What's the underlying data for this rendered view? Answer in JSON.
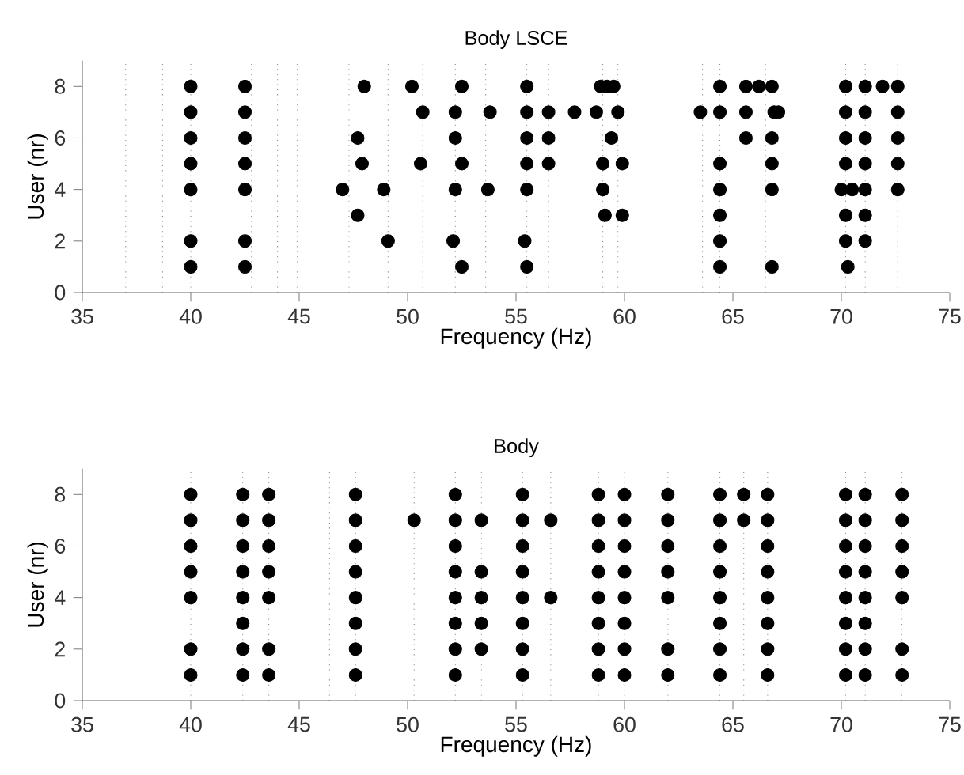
{
  "chart_data": [
    {
      "type": "scatter",
      "title": "Body LSCE",
      "xlabel": "Frequency (Hz)",
      "ylabel": "User (nr)",
      "xlim": [
        35,
        75
      ],
      "ylim": [
        0,
        9
      ],
      "xticks": [
        35,
        40,
        45,
        50,
        55,
        60,
        65,
        70,
        75
      ],
      "yticks": [
        0,
        2,
        4,
        6,
        8
      ],
      "marker": "circle",
      "grid": false,
      "legend": false,
      "series": [
        {
          "color": "#000000",
          "x": [
            40,
            40,
            40,
            40,
            40,
            40,
            40,
            42.5,
            42.5,
            42.5,
            42.5,
            42.5,
            42.5,
            42.5,
            48.0,
            50.2,
            52.5,
            55.5,
            58.9,
            59.2,
            59.5,
            64.4,
            65.6,
            66.2,
            66.8,
            70.2,
            71.1,
            71.9,
            72.6,
            50.7,
            52.2,
            53.8,
            55.5,
            56.5,
            57.7,
            58.7,
            59.7,
            63.5,
            64.4,
            65.6,
            66.9,
            67.1,
            70.2,
            71.1,
            72.6,
            47.7,
            52.2,
            55.5,
            56.5,
            59.4,
            65.6,
            66.8,
            70.2,
            71.1,
            72.6,
            47.9,
            50.6,
            52.5,
            55.5,
            56.5,
            59.0,
            59.9,
            64.4,
            66.8,
            70.2,
            71.1,
            72.6,
            47.0,
            48.9,
            52.2,
            53.7,
            55.5,
            59.0,
            64.4,
            66.8,
            70.0,
            70.5,
            71.1,
            72.6,
            47.7,
            59.1,
            59.9,
            64.4,
            70.2,
            71.1,
            49.1,
            52.1,
            55.4,
            64.4,
            70.2,
            71.1,
            52.5,
            55.5,
            64.4,
            66.8,
            70.3
          ],
          "values": [
            8,
            7,
            6,
            5,
            4,
            2,
            1,
            8,
            7,
            6,
            5,
            4,
            2,
            1,
            8,
            8,
            8,
            8,
            8,
            8,
            8,
            8,
            8,
            8,
            8,
            8,
            8,
            8,
            8,
            7,
            7,
            7,
            7,
            7,
            7,
            7,
            7,
            7,
            7,
            7,
            7,
            7,
            7,
            7,
            7,
            6,
            6,
            6,
            6,
            6,
            6,
            6,
            6,
            6,
            6,
            5,
            5,
            5,
            5,
            5,
            5,
            5,
            5,
            5,
            5,
            5,
            5,
            4,
            4,
            4,
            4,
            4,
            4,
            4,
            4,
            4,
            4,
            4,
            4,
            3,
            3,
            3,
            3,
            3,
            3,
            2,
            2,
            2,
            2,
            2,
            2,
            1,
            1,
            1,
            1,
            1
          ]
        }
      ],
      "ref_lines": [
        {
          "axis": "x",
          "value": 37.0,
          "color": "#808080",
          "line_style": "dotted"
        },
        {
          "axis": "x",
          "value": 38.7,
          "color": "#808080",
          "line_style": "dotted"
        },
        {
          "axis": "x",
          "value": 40.0,
          "color": "#808080",
          "line_style": "dotted"
        },
        {
          "axis": "x",
          "value": 42.5,
          "color": "#808080",
          "line_style": "dotted"
        },
        {
          "axis": "x",
          "value": 42.8,
          "color": "#808080",
          "line_style": "dotted"
        },
        {
          "axis": "x",
          "value": 44.0,
          "color": "#808080",
          "line_style": "dotted"
        },
        {
          "axis": "x",
          "value": 44.9,
          "color": "#808080",
          "line_style": "dotted"
        },
        {
          "axis": "x",
          "value": 47.3,
          "color": "#808080",
          "line_style": "dotted"
        },
        {
          "axis": "x",
          "value": 49.1,
          "color": "#808080",
          "line_style": "dotted"
        },
        {
          "axis": "x",
          "value": 50.7,
          "color": "#808080",
          "line_style": "dotted"
        },
        {
          "axis": "x",
          "value": 52.2,
          "color": "#808080",
          "line_style": "dotted"
        },
        {
          "axis": "x",
          "value": 53.6,
          "color": "#808080",
          "line_style": "dotted"
        },
        {
          "axis": "x",
          "value": 55.5,
          "color": "#808080",
          "line_style": "dotted"
        },
        {
          "axis": "x",
          "value": 56.5,
          "color": "#808080",
          "line_style": "dotted"
        },
        {
          "axis": "x",
          "value": 59.0,
          "color": "#808080",
          "line_style": "dotted"
        },
        {
          "axis": "x",
          "value": 59.7,
          "color": "#808080",
          "line_style": "dotted"
        },
        {
          "axis": "x",
          "value": 63.6,
          "color": "#808080",
          "line_style": "dotted"
        },
        {
          "axis": "x",
          "value": 64.4,
          "color": "#808080",
          "line_style": "dotted"
        },
        {
          "axis": "x",
          "value": 66.5,
          "color": "#808080",
          "line_style": "dotted"
        },
        {
          "axis": "x",
          "value": 70.2,
          "color": "#808080",
          "line_style": "dotted"
        },
        {
          "axis": "x",
          "value": 71.1,
          "color": "#808080",
          "line_style": "dotted"
        },
        {
          "axis": "x",
          "value": 72.6,
          "color": "#808080",
          "line_style": "dotted"
        }
      ]
    },
    {
      "type": "scatter",
      "title": "Body",
      "xlabel": "Frequency (Hz)",
      "ylabel": "User (nr)",
      "xlim": [
        35,
        75
      ],
      "ylim": [
        0,
        9
      ],
      "xticks": [
        35,
        40,
        45,
        50,
        55,
        60,
        65,
        70,
        75
      ],
      "yticks": [
        0,
        2,
        4,
        6,
        8
      ],
      "marker": "circle",
      "grid": false,
      "legend": false,
      "series": [
        {
          "color": "#000000",
          "x": [
            40,
            40,
            40,
            40,
            40,
            40,
            40,
            42.4,
            42.4,
            42.4,
            42.4,
            42.4,
            42.4,
            42.4,
            42.4,
            43.6,
            43.6,
            43.6,
            43.6,
            43.6,
            43.6,
            43.6,
            47.6,
            47.6,
            47.6,
            47.6,
            47.6,
            47.6,
            47.6,
            47.6,
            50.3,
            52.2,
            52.2,
            52.2,
            52.2,
            52.2,
            52.2,
            52.2,
            52.2,
            53.4,
            53.4,
            53.4,
            53.4,
            53.4,
            55.3,
            55.3,
            55.3,
            55.3,
            55.3,
            55.3,
            55.3,
            55.3,
            56.6,
            56.6,
            58.8,
            58.8,
            58.8,
            58.8,
            58.8,
            58.8,
            58.8,
            58.8,
            60.0,
            60.0,
            60.0,
            60.0,
            60.0,
            60.0,
            60.0,
            60.0,
            62.0,
            62.0,
            62.0,
            62.0,
            62.0,
            62.0,
            62.0,
            64.4,
            64.4,
            64.4,
            64.4,
            64.4,
            64.4,
            64.4,
            64.4,
            65.5,
            65.5,
            66.6,
            66.6,
            66.6,
            66.6,
            66.6,
            66.6,
            66.6,
            66.6,
            70.2,
            70.2,
            70.2,
            70.2,
            70.2,
            70.2,
            70.2,
            70.2,
            71.1,
            71.1,
            71.1,
            71.1,
            71.1,
            71.1,
            71.1,
            71.1,
            72.8,
            72.8,
            72.8,
            72.8,
            72.8,
            72.8,
            72.8
          ],
          "values": [
            8,
            7,
            6,
            5,
            4,
            2,
            1,
            8,
            7,
            6,
            5,
            4,
            3,
            2,
            1,
            8,
            7,
            6,
            5,
            4,
            2,
            1,
            8,
            7,
            6,
            5,
            4,
            3,
            2,
            1,
            7,
            8,
            7,
            6,
            5,
            4,
            3,
            2,
            1,
            7,
            5,
            4,
            3,
            2,
            8,
            7,
            6,
            5,
            4,
            3,
            2,
            1,
            7,
            4,
            8,
            7,
            6,
            5,
            4,
            3,
            2,
            1,
            8,
            7,
            6,
            5,
            4,
            3,
            2,
            1,
            8,
            7,
            6,
            5,
            4,
            2,
            1,
            8,
            7,
            6,
            5,
            4,
            3,
            2,
            1,
            8,
            7,
            8,
            7,
            6,
            5,
            4,
            3,
            2,
            1,
            8,
            7,
            6,
            5,
            4,
            3,
            2,
            1,
            8,
            7,
            6,
            5,
            4,
            3,
            2,
            1,
            8,
            7,
            6,
            5,
            4,
            2,
            1
          ]
        }
      ],
      "ref_lines": [
        {
          "axis": "x",
          "value": 40.0,
          "color": "#808080",
          "line_style": "dotted"
        },
        {
          "axis": "x",
          "value": 42.4,
          "color": "#808080",
          "line_style": "dotted"
        },
        {
          "axis": "x",
          "value": 43.6,
          "color": "#808080",
          "line_style": "dotted"
        },
        {
          "axis": "x",
          "value": 46.4,
          "color": "#808080",
          "line_style": "dotted"
        },
        {
          "axis": "x",
          "value": 47.6,
          "color": "#808080",
          "line_style": "dotted"
        },
        {
          "axis": "x",
          "value": 50.3,
          "color": "#808080",
          "line_style": "dotted"
        },
        {
          "axis": "x",
          "value": 52.2,
          "color": "#808080",
          "line_style": "dotted"
        },
        {
          "axis": "x",
          "value": 53.4,
          "color": "#808080",
          "line_style": "dotted"
        },
        {
          "axis": "x",
          "value": 55.3,
          "color": "#808080",
          "line_style": "dotted"
        },
        {
          "axis": "x",
          "value": 56.6,
          "color": "#808080",
          "line_style": "dotted"
        },
        {
          "axis": "x",
          "value": 58.8,
          "color": "#808080",
          "line_style": "dotted"
        },
        {
          "axis": "x",
          "value": 60.0,
          "color": "#808080",
          "line_style": "dotted"
        },
        {
          "axis": "x",
          "value": 62.0,
          "color": "#808080",
          "line_style": "dotted"
        },
        {
          "axis": "x",
          "value": 64.4,
          "color": "#808080",
          "line_style": "dotted"
        },
        {
          "axis": "x",
          "value": 65.5,
          "color": "#808080",
          "line_style": "dotted"
        },
        {
          "axis": "x",
          "value": 66.6,
          "color": "#808080",
          "line_style": "dotted"
        },
        {
          "axis": "x",
          "value": 70.2,
          "color": "#808080",
          "line_style": "dotted"
        },
        {
          "axis": "x",
          "value": 71.1,
          "color": "#808080",
          "line_style": "dotted"
        },
        {
          "axis": "x",
          "value": 72.8,
          "color": "#808080",
          "line_style": "dotted"
        }
      ]
    }
  ]
}
